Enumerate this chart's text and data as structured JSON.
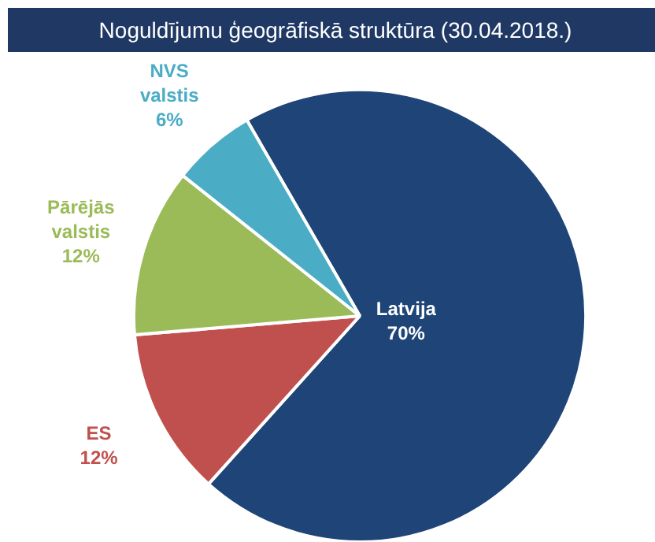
{
  "chart_data": {
    "type": "pie",
    "title": "Noguldījumu ģeogrāfiskā struktūra (30.04.2018.)",
    "categories": [
      "Latvija",
      "ES",
      "Pārējās valstis",
      "NVS valstis"
    ],
    "values": [
      70,
      12,
      12,
      6
    ],
    "value_labels": [
      "70%",
      "12%",
      "12%",
      "6%"
    ],
    "colors": [
      "#1f4477",
      "#c0504d",
      "#9bbb59",
      "#4bacc6"
    ]
  }
}
